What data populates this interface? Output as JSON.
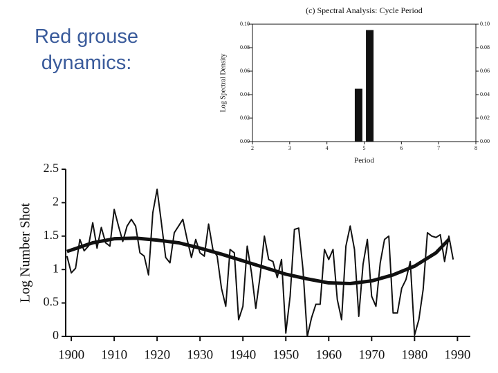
{
  "slide": {
    "title": "Red grouse dynamics:"
  },
  "chart_data": [
    {
      "type": "bar",
      "title": "(c) Spectral Analysis: Cycle Period",
      "x_label": "Period",
      "y_label": "Log Spectral Density",
      "x": [
        4.85,
        5.15
      ],
      "values": [
        0.045,
        0.095
      ],
      "color": "#111111",
      "xlim": [
        2,
        8
      ],
      "xticks": [
        2,
        3,
        4,
        5,
        6,
        7,
        8
      ],
      "ylim": [
        0,
        0.1
      ],
      "yticks": [
        {
          "value": 0,
          "label": "0.00"
        },
        {
          "value": 0.02,
          "label": "0.02"
        },
        {
          "value": 0.04,
          "label": "0.04"
        },
        {
          "value": 0.06,
          "label": "0.06"
        },
        {
          "value": 0.08,
          "label": "0.08"
        },
        {
          "value": 0.1,
          "label": "0.10"
        }
      ],
      "y2lim": [
        0,
        0.1
      ],
      "y2ticks": [
        {
          "value": 0,
          "label": "0.00"
        },
        {
          "value": 0.02,
          "label": "0.02"
        },
        {
          "value": 0.04,
          "label": "0.04"
        },
        {
          "value": 0.06,
          "label": "0.06"
        },
        {
          "value": 0.08,
          "label": "0.08"
        },
        {
          "value": 0.1,
          "label": "0.10"
        }
      ]
    },
    {
      "type": "line",
      "y_label": "Log Number Shot",
      "xlim": [
        1898.7,
        1993
      ],
      "xticks": [
        1900,
        1910,
        1920,
        1930,
        1940,
        1950,
        1960,
        1970,
        1980,
        1990
      ],
      "ylim": [
        0,
        2.5
      ],
      "yticks": [
        0,
        0.5,
        1,
        1.5,
        2,
        2.5
      ],
      "series": [
        {
          "color": "#111111",
          "width": 2,
          "x": [
            1899,
            1900,
            1901,
            1902,
            1903,
            1904,
            1905,
            1906,
            1907,
            1908,
            1909,
            1910,
            1911,
            1912,
            1913,
            1914,
            1915,
            1916,
            1917,
            1918,
            1919,
            1920,
            1921,
            1922,
            1923,
            1924,
            1925,
            1926,
            1927,
            1928,
            1929,
            1930,
            1931,
            1932,
            1933,
            1934,
            1935,
            1936,
            1937,
            1938,
            1939,
            1940,
            1941,
            1942,
            1943,
            1944,
            1945,
            1946,
            1947,
            1948,
            1949,
            1950,
            1951,
            1952,
            1953,
            1954,
            1955,
            1956,
            1957,
            1958,
            1959,
            1960,
            1961,
            1962,
            1963,
            1964,
            1965,
            1966,
            1967,
            1968,
            1969,
            1970,
            1971,
            1972,
            1973,
            1974,
            1975,
            1976,
            1977,
            1978,
            1979,
            1980,
            1981,
            1982,
            1983,
            1984,
            1985,
            1986,
            1987,
            1988,
            1989
          ],
          "values": [
            1.2,
            0.95,
            1.02,
            1.45,
            1.28,
            1.35,
            1.7,
            1.32,
            1.63,
            1.4,
            1.35,
            1.9,
            1.65,
            1.42,
            1.65,
            1.75,
            1.65,
            1.25,
            1.2,
            0.92,
            1.85,
            2.2,
            1.7,
            1.18,
            1.1,
            1.55,
            1.65,
            1.75,
            1.45,
            1.18,
            1.45,
            1.25,
            1.2,
            1.68,
            1.3,
            1.2,
            0.72,
            0.45,
            1.3,
            1.25,
            0.25,
            0.45,
            1.35,
            0.95,
            0.42,
            0.9,
            1.5,
            1.15,
            1.12,
            0.88,
            1.15,
            0.05,
            0.6,
            1.6,
            1.62,
            1.0,
            0.0,
            0.28,
            0.48,
            0.48,
            1.3,
            1.15,
            1.3,
            0.55,
            0.25,
            1.35,
            1.65,
            1.3,
            0.3,
            1.08,
            1.45,
            0.6,
            0.45,
            1.1,
            1.45,
            1.5,
            0.35,
            0.35,
            0.72,
            0.85,
            1.12,
            0.02,
            0.25,
            0.7,
            1.55,
            1.5,
            1.48,
            1.52,
            1.12,
            1.5,
            1.15
          ]
        },
        {
          "color": "#111111",
          "width": 5,
          "x": [
            1899,
            1905,
            1910,
            1915,
            1920,
            1925,
            1930,
            1935,
            1940,
            1945,
            1950,
            1955,
            1960,
            1965,
            1970,
            1975,
            1980,
            1985,
            1988
          ],
          "values": [
            1.27,
            1.4,
            1.46,
            1.47,
            1.44,
            1.4,
            1.32,
            1.23,
            1.13,
            1.03,
            0.93,
            0.86,
            0.8,
            0.79,
            0.83,
            0.92,
            1.05,
            1.25,
            1.45
          ]
        }
      ]
    }
  ]
}
